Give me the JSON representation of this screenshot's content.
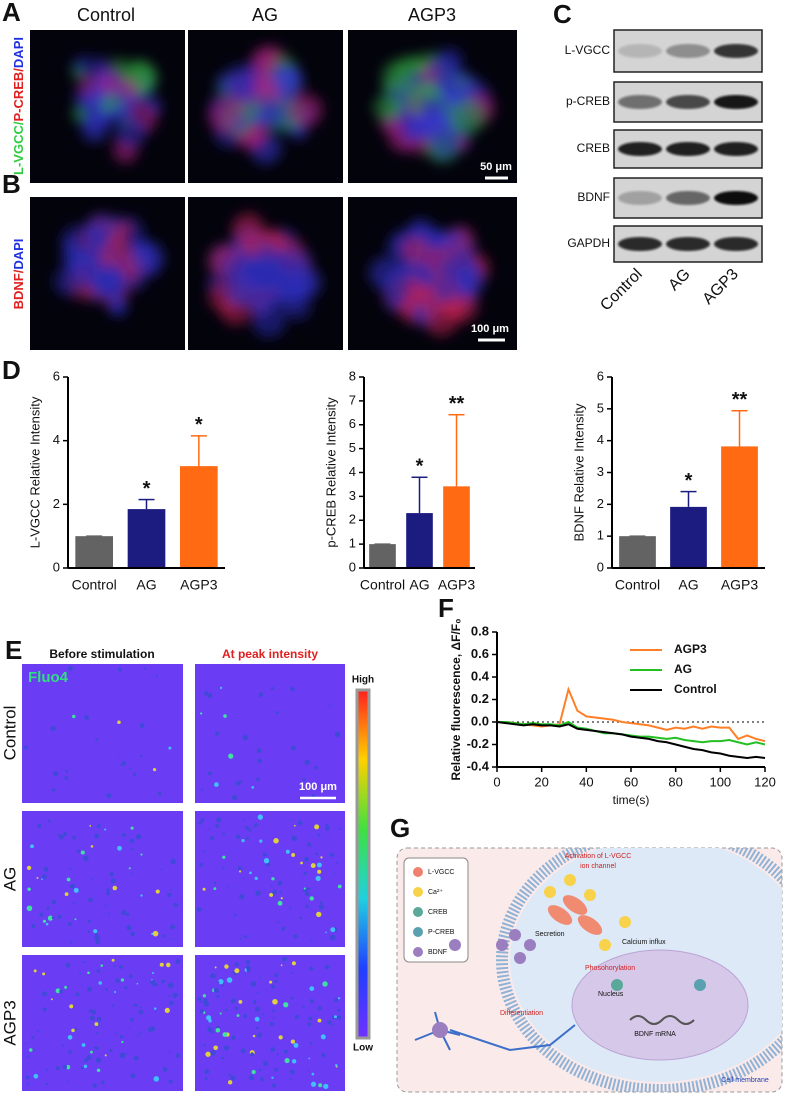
{
  "panel_a": {
    "label": "A",
    "columns": [
      "Control",
      "AG",
      "AGP3"
    ],
    "stain_parts": [
      "L-VGCC/",
      "P-CREB/",
      "DAPI"
    ],
    "scale_bar": "50 μm"
  },
  "panel_b": {
    "label": "B",
    "stain_parts": [
      "BDNF/",
      "DAPI"
    ],
    "scale_bar": "100 μm"
  },
  "panel_c": {
    "label": "C",
    "bands": [
      "L-VGCC",
      "p-CREB",
      "CREB",
      "BDNF",
      "GAPDH"
    ],
    "lanes": [
      "Control",
      "AG",
      "AGP3"
    ]
  },
  "panel_d": {
    "label": "D"
  },
  "panel_e": {
    "label": "E",
    "columns": [
      "Before stimulation",
      "At peak intensity"
    ],
    "rows": [
      "Control",
      "AG",
      "AGP3"
    ],
    "dye": "Fluo4",
    "scale_bar": "100 μm",
    "colorbar": [
      "High",
      "Low"
    ]
  },
  "panel_f": {
    "label": "F"
  },
  "panel_g": {
    "label": "G",
    "legend": [
      "L-VGCC",
      "Ca²⁺",
      "CREB",
      "P-CREB",
      "BDNF"
    ],
    "activation": [
      "Activation of L-VGCC",
      "ion channel"
    ],
    "calcium": "Calcium influx",
    "secretion": "Secretion",
    "phosphorylation": "Phosohorylation",
    "nucleus": "Nucleus",
    "mrna": "BDNF mRNA",
    "differentiation": "Differentiation",
    "membrane": "Cell membrane"
  },
  "chart_data": [
    {
      "type": "bar",
      "y_label": "L-VGCC Relative Intensity",
      "categories": [
        "Control",
        "AG",
        "AGP3"
      ],
      "values": [
        1,
        1.85,
        3.2
      ],
      "errors": [
        0,
        0.3,
        0.95
      ],
      "significance": [
        null,
        "*",
        "*"
      ],
      "colors": [
        "#636363",
        "#1c1c80",
        "#ff6a13"
      ],
      "ylim": [
        0,
        6
      ],
      "yticks": [
        0,
        2,
        4,
        6
      ]
    },
    {
      "type": "bar",
      "y_label": "p-CREB Relative Intensity",
      "categories": [
        "Control",
        "AG",
        "AGP3"
      ],
      "values": [
        1,
        2.3,
        3.42
      ],
      "errors": [
        0,
        1.5,
        3.0
      ],
      "significance": [
        null,
        "*",
        "**"
      ],
      "colors": [
        "#636363",
        "#1c1c80",
        "#ff6a13"
      ],
      "ylim": [
        0,
        8
      ],
      "yticks": [
        0,
        1,
        2,
        3,
        4,
        5,
        6,
        7,
        8
      ]
    },
    {
      "type": "bar",
      "y_label": "BDNF Relative Intensity",
      "categories": [
        "Control",
        "AG",
        "AGP3"
      ],
      "values": [
        1,
        1.92,
        3.82
      ],
      "errors": [
        0,
        0.48,
        1.12
      ],
      "significance": [
        null,
        "*",
        "**"
      ],
      "colors": [
        "#636363",
        "#1c1c80",
        "#ff6a13"
      ],
      "ylim": [
        0,
        6
      ],
      "yticks": [
        0,
        1,
        2,
        3,
        4,
        5,
        6
      ]
    },
    {
      "type": "line",
      "x_label": "time(s)",
      "y_label": "Relative fluorescence, ΔF/F₀",
      "legend": "upper right",
      "reference_y": 0,
      "x": [
        0,
        4,
        8,
        12,
        16,
        20,
        24,
        28,
        32,
        36,
        40,
        44,
        48,
        52,
        56,
        60,
        64,
        68,
        72,
        76,
        80,
        84,
        88,
        92,
        96,
        100,
        104,
        108,
        112,
        116,
        120
      ],
      "xlim": [
        0,
        120
      ],
      "xticks": [
        0,
        20,
        40,
        60,
        80,
        100,
        120
      ],
      "ylim": [
        -0.4,
        0.8
      ],
      "yticks": [
        -0.4,
        -0.2,
        {
          "value": 0,
          "label": "0.0"
        },
        0.2,
        0.4,
        0.6,
        0.8
      ],
      "series": [
        {
          "name": "AGP3",
          "color": "#ff7f27",
          "values": [
            0,
            0,
            -0.01,
            -0.02,
            -0.03,
            -0.04,
            -0.03,
            -0.02,
            0.29,
            0.1,
            0.05,
            0.04,
            0.03,
            0.02,
            0.0,
            -0.01,
            -0.02,
            -0.03,
            -0.05,
            -0.07,
            -0.05,
            -0.06,
            -0.04,
            -0.06,
            -0.04,
            -0.05,
            -0.05,
            -0.15,
            -0.12,
            -0.15,
            -0.17
          ]
        },
        {
          "name": "AG",
          "color": "#22c022",
          "values": [
            0,
            0,
            -0.01,
            -0.02,
            -0.01,
            -0.02,
            -0.02,
            -0.03,
            0.0,
            -0.05,
            -0.06,
            -0.08,
            -0.1,
            -0.1,
            -0.11,
            -0.12,
            -0.13,
            -0.13,
            -0.14,
            -0.15,
            -0.14,
            -0.16,
            -0.17,
            -0.18,
            -0.17,
            -0.17,
            -0.16,
            -0.18,
            -0.2,
            -0.18,
            -0.2
          ]
        },
        {
          "name": "Control",
          "color": "#000000",
          "values": [
            0,
            -0.01,
            -0.02,
            -0.03,
            -0.02,
            -0.03,
            -0.03,
            -0.04,
            -0.02,
            -0.06,
            -0.07,
            -0.08,
            -0.09,
            -0.1,
            -0.11,
            -0.13,
            -0.14,
            -0.15,
            -0.17,
            -0.18,
            -0.2,
            -0.22,
            -0.24,
            -0.25,
            -0.27,
            -0.28,
            -0.3,
            -0.31,
            -0.32,
            -0.31,
            -0.32
          ]
        }
      ]
    }
  ]
}
